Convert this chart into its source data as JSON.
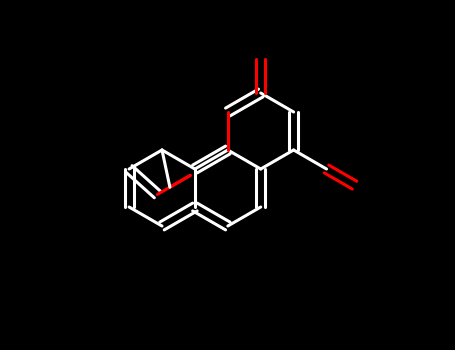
{
  "background": "#000000",
  "bond_color": "#ffffff",
  "oxygen_color": "#ff0000",
  "lw": 2.2,
  "sep": 4.5,
  "BL": 38,
  "figw": 4.55,
  "figh": 3.5,
  "dpi": 100
}
